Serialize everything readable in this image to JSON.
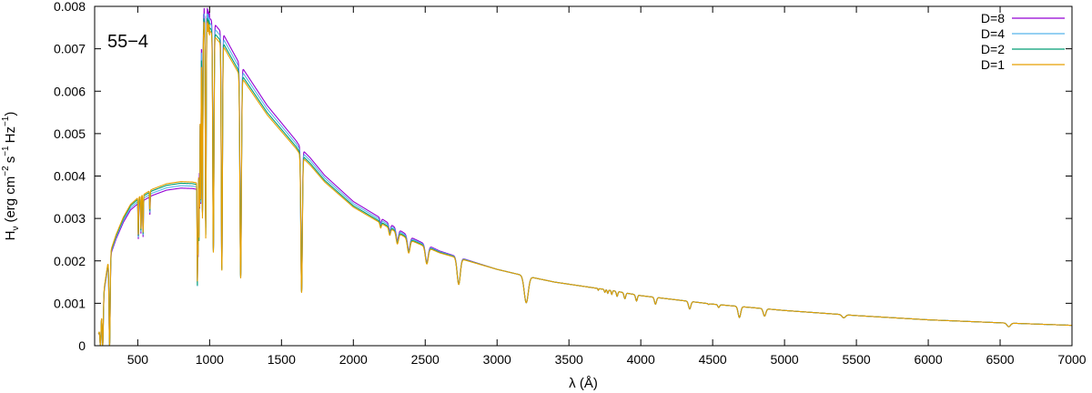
{
  "chart_data": {
    "type": "line",
    "annotation": "55−4",
    "xlabel": "λ (Å)",
    "ylabel_main": "H",
    "ylabel_sub": "ν",
    "ylabel_rest": "(erg cm",
    "ylabel_exp1": "−2",
    "ylabel_mid1": "s",
    "ylabel_exp2": "−1",
    "ylabel_mid2": "Hz",
    "ylabel_exp3": "−1",
    "ylabel_close": ")",
    "xlim": [
      200,
      7000
    ],
    "ylim": [
      0,
      0.008
    ],
    "xticks": [
      500,
      1000,
      1500,
      2000,
      2500,
      3000,
      3500,
      4000,
      4500,
      5000,
      5500,
      6000,
      6500,
      7000
    ],
    "yticks": [
      0,
      0.001,
      0.002,
      0.003,
      0.004,
      0.005,
      0.006,
      0.007,
      0.008
    ],
    "xtick_labels": [
      "500",
      "1000",
      "1500",
      "2000",
      "2500",
      "3000",
      "3500",
      "4000",
      "4500",
      "5000",
      "5500",
      "6000",
      "6500",
      "7000"
    ],
    "ytick_labels": [
      "0",
      "0.001",
      "0.002",
      "0.003",
      "0.004",
      "0.005",
      "0.006",
      "0.007",
      "0.008"
    ],
    "legend_position": "top-right",
    "series": [
      {
        "name": "D=8",
        "color": "#9400d3",
        "scale": 1.03,
        "blue_scale": 0.97
      },
      {
        "name": "D=4",
        "color": "#56b4e9",
        "scale": 1.015,
        "blue_scale": 0.985
      },
      {
        "name": "D=2",
        "color": "#009e73",
        "scale": 1.0,
        "blue_scale": 1.0
      },
      {
        "name": "D=1",
        "color": "#e69f00",
        "scale": 0.99,
        "blue_scale": 1.01
      }
    ],
    "continuum_x": [
      230,
      260,
      300,
      350,
      400,
      450,
      500,
      550,
      600,
      700,
      800,
      880,
      912,
      930,
      950,
      980,
      1000,
      1050,
      1100,
      1200,
      1300,
      1400,
      1500,
      1600,
      1640,
      1700,
      1800,
      1900,
      2000,
      2200,
      2400,
      2600,
      2800,
      3000,
      3200,
      3400,
      3600,
      3800,
      4000,
      4500,
      5000,
      5500,
      6000,
      6500,
      7000
    ],
    "continuum_y": [
      0.0003,
      0.0012,
      0.0021,
      0.0026,
      0.003,
      0.0033,
      0.00345,
      0.00355,
      0.00365,
      0.00378,
      0.00383,
      0.00382,
      0.0038,
      0.0074,
      0.0076,
      0.00765,
      0.0075,
      0.0073,
      0.0071,
      0.0065,
      0.006,
      0.0055,
      0.0051,
      0.0047,
      0.0045,
      0.0043,
      0.0039,
      0.0036,
      0.0033,
      0.0029,
      0.0025,
      0.0022,
      0.002,
      0.0018,
      0.00164,
      0.0015,
      0.0014,
      0.0013,
      0.00118,
      0.00098,
      0.00083,
      0.00071,
      0.00061,
      0.00054,
      0.00048
    ],
    "absorption_lines": [
      {
        "x": 240,
        "depth": 1.0,
        "width": 4
      },
      {
        "x": 256,
        "depth": 1.0,
        "width": 4
      },
      {
        "x": 304,
        "depth": 1.0,
        "width": 4
      },
      {
        "x": 504,
        "depth": 0.25,
        "width": 2
      },
      {
        "x": 522,
        "depth": 0.22,
        "width": 2
      },
      {
        "x": 537,
        "depth": 0.25,
        "width": 2
      },
      {
        "x": 584,
        "depth": 0.12,
        "width": 2
      },
      {
        "x": 915,
        "depth": 0.65,
        "width": 2
      },
      {
        "x": 920,
        "depth": 0.6,
        "width": 2
      },
      {
        "x": 926,
        "depth": 0.6,
        "width": 2
      },
      {
        "x": 931,
        "depth": 0.55,
        "width": 2
      },
      {
        "x": 938,
        "depth": 0.55,
        "width": 2.5
      },
      {
        "x": 950,
        "depth": 0.6,
        "width": 3
      },
      {
        "x": 973,
        "depth": 0.65,
        "width": 3
      },
      {
        "x": 1026,
        "depth": 0.7,
        "width": 4
      },
      {
        "x": 1085,
        "depth": 0.75,
        "width": 4
      },
      {
        "x": 1216,
        "depth": 0.75,
        "width": 5
      },
      {
        "x": 1640,
        "depth": 0.72,
        "width": 5
      },
      {
        "x": 2190,
        "depth": 0.04,
        "width": 5
      },
      {
        "x": 2253,
        "depth": 0.06,
        "width": 6
      },
      {
        "x": 2306,
        "depth": 0.1,
        "width": 8
      },
      {
        "x": 2385,
        "depth": 0.13,
        "width": 9
      },
      {
        "x": 2511,
        "depth": 0.17,
        "width": 10
      },
      {
        "x": 2733,
        "depth": 0.3,
        "width": 11
      },
      {
        "x": 3203,
        "depth": 0.38,
        "width": 14
      },
      {
        "x": 3704,
        "depth": 0.03,
        "width": 3
      },
      {
        "x": 3750,
        "depth": 0.05,
        "width": 4
      },
      {
        "x": 3770,
        "depth": 0.06,
        "width": 4
      },
      {
        "x": 3798,
        "depth": 0.07,
        "width": 4
      },
      {
        "x": 3835,
        "depth": 0.09,
        "width": 5
      },
      {
        "x": 3889,
        "depth": 0.11,
        "width": 6
      },
      {
        "x": 3970,
        "depth": 0.12,
        "width": 6
      },
      {
        "x": 4102,
        "depth": 0.14,
        "width": 7
      },
      {
        "x": 4340,
        "depth": 0.17,
        "width": 8
      },
      {
        "x": 4472,
        "depth": 0.02,
        "width": 4
      },
      {
        "x": 4542,
        "depth": 0.07,
        "width": 6
      },
      {
        "x": 4686,
        "depth": 0.28,
        "width": 9
      },
      {
        "x": 4861,
        "depth": 0.2,
        "width": 9
      },
      {
        "x": 5412,
        "depth": 0.1,
        "width": 12
      },
      {
        "x": 6560,
        "depth": 0.16,
        "width": 12
      }
    ]
  }
}
